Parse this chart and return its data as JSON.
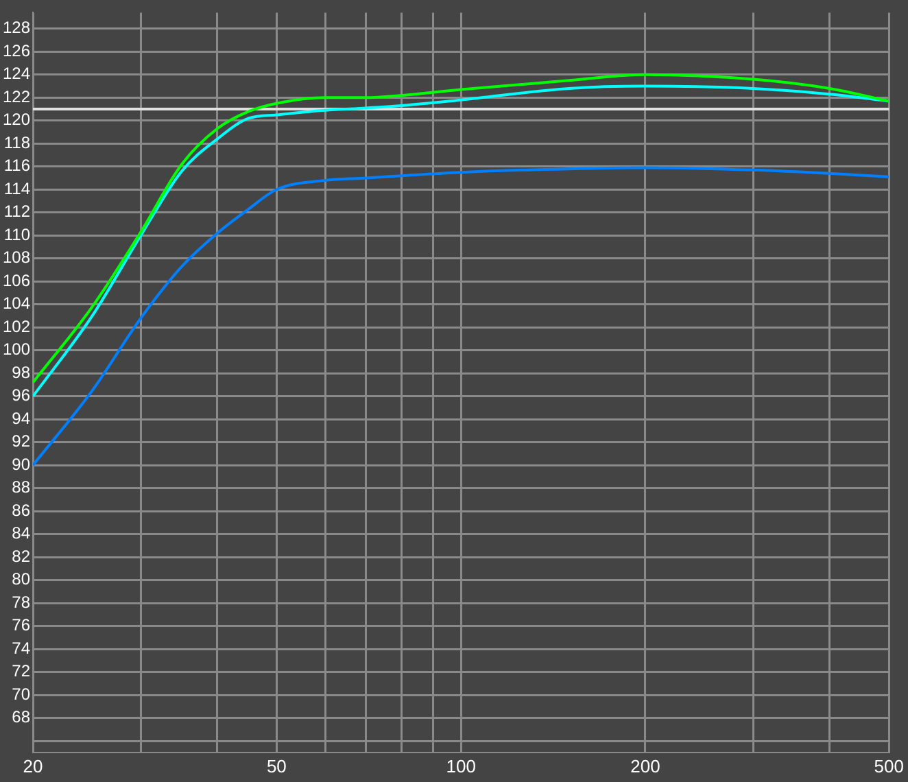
{
  "chart_data": {
    "type": "line",
    "log": "x",
    "grid": true,
    "marker": "none",
    "line_style": "solid",
    "xlim": [
      20,
      500
    ],
    "ylim": [
      65,
      129.4
    ],
    "xticks": [
      20,
      {
        "value": 30,
        "label": null
      },
      {
        "value": 40,
        "label": null
      },
      50,
      {
        "value": 60,
        "label": null
      },
      {
        "value": 70,
        "label": null
      },
      {
        "value": 80,
        "label": null
      },
      {
        "value": 90,
        "label": null
      },
      100,
      200,
      {
        "value": 300,
        "label": null
      },
      {
        "value": 400,
        "label": null
      },
      500
    ],
    "yticks": [
      {
        "value": 66,
        "label": null
      },
      68,
      70,
      72,
      74,
      76,
      78,
      80,
      82,
      84,
      86,
      88,
      90,
      92,
      94,
      96,
      98,
      100,
      102,
      104,
      106,
      108,
      110,
      112,
      114,
      116,
      118,
      120,
      122,
      124,
      126,
      128
    ],
    "x": [
      20,
      25,
      30,
      35,
      40,
      45,
      50,
      60,
      70,
      80,
      100,
      150,
      200,
      300,
      400,
      500
    ],
    "series": [
      {
        "color": "#00ff00",
        "values": [
          97.2,
          103.8,
          110.3,
          116.2,
          119.3,
          120.8,
          121.5,
          122.0,
          122.0,
          122.2,
          122.7,
          123.5,
          124.0,
          123.6,
          122.8,
          121.7
        ]
      },
      {
        "color": "#00ffff",
        "values": [
          96.0,
          103.0,
          110.0,
          115.6,
          118.4,
          120.2,
          120.5,
          120.9,
          121.1,
          121.3,
          121.8,
          122.8,
          123.0,
          122.8,
          122.3,
          121.7
        ]
      },
      {
        "color": "#0080ff",
        "values": [
          90.0,
          96.5,
          102.8,
          107.3,
          110.2,
          112.3,
          114.0,
          114.8,
          115.0,
          115.2,
          115.5,
          115.8,
          115.9,
          115.7,
          115.4,
          115.1
        ]
      }
    ],
    "ref_lines": [
      {
        "axis": "y",
        "value": 121,
        "color": "#e0e0e0"
      }
    ]
  }
}
